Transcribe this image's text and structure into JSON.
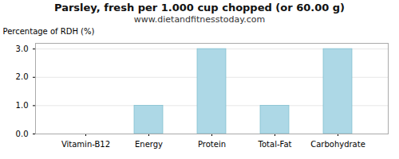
{
  "chart_data": {
    "type": "bar",
    "title": "Parsley, fresh per 1.000 cup chopped (or 60.00 g)",
    "subtitle": "www.dietandfitnesstoday.com",
    "categories": [
      "Vitamin-B12",
      "Energy",
      "Protein",
      "Total-Fat",
      "Carbohydrate"
    ],
    "values": [
      0.0,
      1.0,
      3.0,
      1.0,
      3.0
    ],
    "color": "#add8e6",
    "ylabel": "Percentage of RDH (%)",
    "ylim": [
      0,
      3.2
    ],
    "yticks": [
      {
        "value": 0.0,
        "label": "0.0"
      },
      {
        "value": 1.0,
        "label": "1.0"
      },
      {
        "value": 2.0,
        "label": "2.0"
      },
      {
        "value": 3.0,
        "label": "3.0"
      }
    ],
    "grid": true
  }
}
